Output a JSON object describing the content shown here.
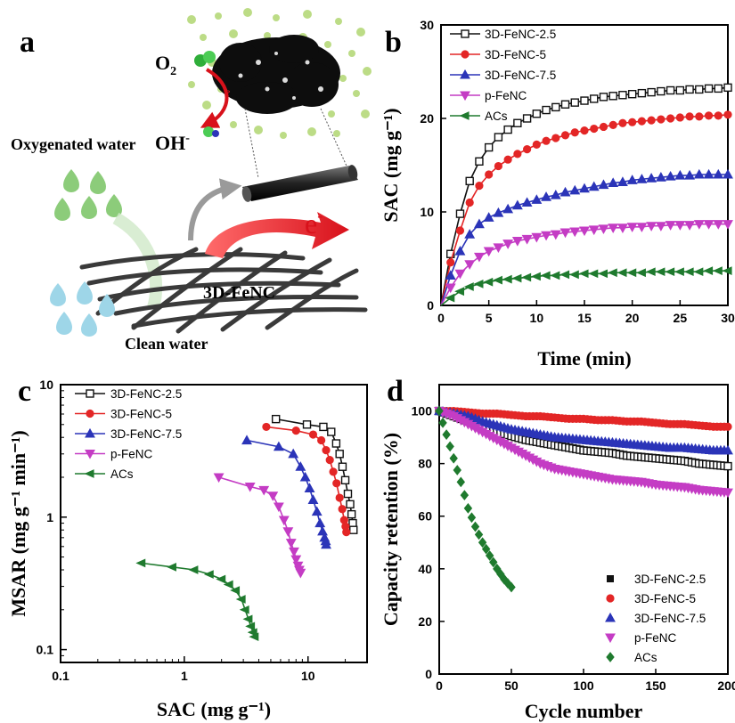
{
  "panel_a": {
    "letter": "a",
    "o2_label": "O",
    "o2_sub": "2",
    "oh_label": "OH",
    "oh_sup": "-",
    "electron_label": "e",
    "electron_sup": "-",
    "oxygenated_water": "Oxygenated water",
    "clean_water": "Clean water",
    "material_label": "3D-FeNC"
  },
  "colors": {
    "3D-FeNC-2.5": "#111111",
    "3D-FeNC-5": "#e32626",
    "3D-FeNC-7.5": "#2b34b8",
    "p-FeNC": "#c43cc4",
    "ACs": "#1f7a2e"
  },
  "chart_data": [
    {
      "panel": "b",
      "type": "line",
      "xlabel": "Time (min)",
      "ylabel": "SAC (mg g⁻¹)",
      "xlim": [
        0,
        30
      ],
      "ylim": [
        0,
        30
      ],
      "xticks": [
        "0",
        "5",
        "10",
        "15",
        "20",
        "25",
        "30"
      ],
      "yticks": [
        "0",
        "10",
        "20",
        "30"
      ],
      "legend_position": "top-left",
      "x": [
        0,
        1,
        2,
        3,
        4,
        5,
        6,
        7,
        8,
        9,
        10,
        11,
        12,
        13,
        14,
        15,
        16,
        17,
        18,
        19,
        20,
        21,
        22,
        23,
        24,
        25,
        26,
        27,
        28,
        29,
        30
      ],
      "series": [
        {
          "name": "3D-FeNC-2.5",
          "values": [
            0,
            5.5,
            9.8,
            13.3,
            15.4,
            16.9,
            18.0,
            18.8,
            19.5,
            20.0,
            20.5,
            20.9,
            21.2,
            21.5,
            21.7,
            21.9,
            22.1,
            22.3,
            22.4,
            22.5,
            22.6,
            22.7,
            22.8,
            22.9,
            23.0,
            23.0,
            23.1,
            23.1,
            23.2,
            23.2,
            23.3
          ]
        },
        {
          "name": "3D-FeNC-5",
          "values": [
            0,
            4.6,
            8.0,
            11.0,
            12.8,
            14.0,
            14.9,
            15.6,
            16.2,
            16.7,
            17.2,
            17.6,
            17.9,
            18.2,
            18.5,
            18.7,
            18.9,
            19.1,
            19.3,
            19.5,
            19.6,
            19.7,
            19.8,
            19.9,
            20.0,
            20.1,
            20.2,
            20.2,
            20.3,
            20.3,
            20.4
          ]
        },
        {
          "name": "3D-FeNC-7.5",
          "values": [
            0,
            3.2,
            5.8,
            7.6,
            8.7,
            9.4,
            9.9,
            10.3,
            10.7,
            11.0,
            11.3,
            11.6,
            11.8,
            12.1,
            12.3,
            12.5,
            12.7,
            12.9,
            13.1,
            13.2,
            13.4,
            13.5,
            13.6,
            13.7,
            13.8,
            13.9,
            13.9,
            14.0,
            14.0,
            14.0,
            14.0
          ]
        },
        {
          "name": "p-FeNC",
          "values": [
            0,
            1.9,
            3.4,
            4.4,
            5.2,
            5.8,
            6.2,
            6.6,
            6.9,
            7.1,
            7.3,
            7.5,
            7.6,
            7.8,
            7.9,
            8.0,
            8.1,
            8.2,
            8.3,
            8.3,
            8.4,
            8.4,
            8.5,
            8.5,
            8.6,
            8.6,
            8.6,
            8.7,
            8.7,
            8.7,
            8.7
          ]
        },
        {
          "name": "ACs",
          "values": [
            0,
            0.8,
            1.5,
            2.0,
            2.3,
            2.5,
            2.7,
            2.8,
            2.9,
            3.0,
            3.1,
            3.2,
            3.2,
            3.3,
            3.3,
            3.4,
            3.4,
            3.4,
            3.5,
            3.5,
            3.5,
            3.5,
            3.6,
            3.6,
            3.6,
            3.6,
            3.6,
            3.6,
            3.7,
            3.7,
            3.7
          ]
        }
      ]
    },
    {
      "panel": "c",
      "type": "line",
      "xlabel": "SAC (mg g⁻¹)",
      "ylabel": "MSAR (mg g⁻¹ min⁻¹)",
      "xscale": "log",
      "yscale": "log",
      "xlim": [
        0.1,
        30
      ],
      "ylim": [
        0.08,
        10
      ],
      "xticks": [
        "0.1",
        "1",
        "10"
      ],
      "yticks": [
        "0.1",
        "1",
        "10"
      ],
      "legend_position": "top-left",
      "series": [
        {
          "name": "3D-FeNC-2.5",
          "x": [
            5.5,
            9.8,
            13.3,
            15.4,
            16.9,
            18.0,
            19.0,
            20.0,
            21.0,
            21.9,
            22.5,
            23.0,
            23.3
          ],
          "y": [
            5.5,
            5.0,
            4.8,
            4.4,
            3.6,
            3.0,
            2.4,
            1.9,
            1.5,
            1.25,
            1.05,
            0.9,
            0.8
          ]
        },
        {
          "name": "3D-FeNC-5",
          "x": [
            4.6,
            8.0,
            11.0,
            12.8,
            14.0,
            15.0,
            16.0,
            17.0,
            18.0,
            18.9,
            19.6,
            20.1,
            20.4
          ],
          "y": [
            4.8,
            4.5,
            4.2,
            3.8,
            3.2,
            2.7,
            2.2,
            1.8,
            1.4,
            1.15,
            0.95,
            0.85,
            0.77
          ]
        },
        {
          "name": "3D-FeNC-7.5",
          "x": [
            3.2,
            5.8,
            7.6,
            8.7,
            9.5,
            10.3,
            11.0,
            11.8,
            12.5,
            13.1,
            13.6,
            13.9,
            14.0
          ],
          "y": [
            3.8,
            3.4,
            3.0,
            2.4,
            2.0,
            1.65,
            1.35,
            1.1,
            0.9,
            0.78,
            0.7,
            0.66,
            0.62
          ]
        },
        {
          "name": "p-FeNC",
          "x": [
            1.9,
            3.4,
            4.4,
            5.2,
            5.8,
            6.4,
            6.9,
            7.3,
            7.7,
            8.0,
            8.3,
            8.5,
            8.7
          ],
          "y": [
            2.0,
            1.7,
            1.6,
            1.45,
            1.2,
            0.95,
            0.78,
            0.64,
            0.55,
            0.48,
            0.43,
            0.4,
            0.38
          ]
        },
        {
          "name": "ACs",
          "x": [
            0.45,
            0.8,
            1.2,
            1.6,
            2.0,
            2.3,
            2.6,
            2.9,
            3.1,
            3.3,
            3.45,
            3.6,
            3.7
          ],
          "y": [
            0.45,
            0.42,
            0.4,
            0.37,
            0.34,
            0.31,
            0.28,
            0.24,
            0.2,
            0.17,
            0.15,
            0.135,
            0.125
          ]
        }
      ]
    },
    {
      "panel": "d",
      "type": "scatter",
      "xlabel": "Cycle number",
      "ylabel": "Capacity retention (%)",
      "xlim": [
        0,
        200
      ],
      "ylim": [
        0,
        110
      ],
      "xticks": [
        "0",
        "50",
        "100",
        "150",
        "200"
      ],
      "yticks": [
        "0",
        "20",
        "40",
        "60",
        "80",
        "100"
      ],
      "legend_position": "bottom-right",
      "series": [
        {
          "name": "3D-FeNC-2.5",
          "marker": "square",
          "x": [
            0,
            10,
            20,
            30,
            40,
            50,
            60,
            70,
            80,
            90,
            100,
            110,
            120,
            130,
            140,
            150,
            160,
            170,
            180,
            190,
            200
          ],
          "y": [
            100,
            98,
            96,
            94,
            92,
            90.5,
            89,
            88,
            87,
            86,
            85,
            84.5,
            84,
            83,
            82.5,
            82,
            81.5,
            81,
            80,
            79.5,
            79
          ]
        },
        {
          "name": "3D-FeNC-5",
          "marker": "circle",
          "x": [
            0,
            10,
            20,
            30,
            40,
            50,
            60,
            70,
            80,
            90,
            100,
            110,
            120,
            130,
            140,
            150,
            160,
            170,
            180,
            190,
            200
          ],
          "y": [
            100,
            100,
            99.5,
            99,
            99,
            98.5,
            98,
            98,
            97.5,
            97,
            97,
            96.5,
            96.5,
            96,
            96,
            95.5,
            95,
            95,
            94.5,
            94,
            94
          ]
        },
        {
          "name": "3D-FeNC-7.5",
          "marker": "triangle-up",
          "x": [
            0,
            10,
            20,
            30,
            40,
            50,
            60,
            70,
            80,
            90,
            100,
            110,
            120,
            130,
            140,
            150,
            160,
            170,
            180,
            190,
            200
          ],
          "y": [
            100,
            99,
            98,
            96,
            94.5,
            93,
            92,
            91,
            90,
            89.5,
            89,
            88.5,
            88,
            87.5,
            87,
            86.5,
            86,
            86,
            85.5,
            85,
            85
          ]
        },
        {
          "name": "p-FeNC",
          "marker": "triangle-down",
          "x": [
            0,
            10,
            20,
            30,
            40,
            50,
            60,
            70,
            80,
            90,
            100,
            110,
            120,
            130,
            140,
            150,
            160,
            170,
            180,
            190,
            200
          ],
          "y": [
            100,
            98,
            95,
            92,
            89,
            86,
            83,
            80,
            78,
            77,
            76,
            75,
            74,
            73.5,
            73,
            72,
            71.5,
            71,
            70,
            69.5,
            69
          ]
        },
        {
          "name": "ACs",
          "marker": "diamond",
          "x": [
            0,
            5,
            10,
            15,
            20,
            25,
            30,
            35,
            40,
            45,
            50
          ],
          "y": [
            100,
            91,
            82,
            73,
            63,
            56,
            50,
            45,
            40,
            36,
            33
          ]
        }
      ]
    }
  ]
}
